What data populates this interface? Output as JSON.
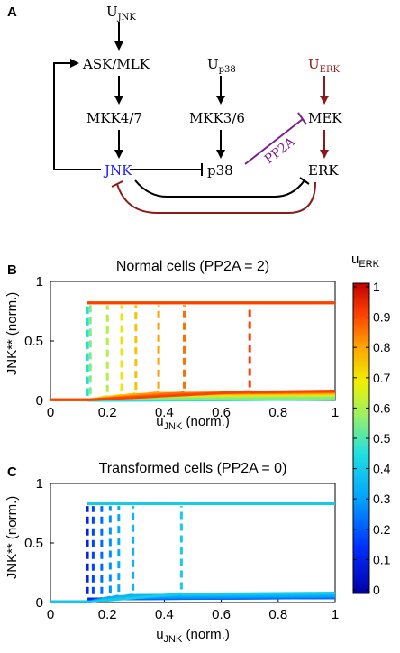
{
  "panel_a": {
    "label": "A",
    "nodes": {
      "u_jnk": {
        "main": "U",
        "sub": "JNK"
      },
      "ask_mlk": "ASK/MLK",
      "mkk47": "MKK4/7",
      "jnk": "JNK",
      "u_p38": {
        "main": "U",
        "sub": "p38"
      },
      "mkk36": "MKK3/6",
      "p38": "p38",
      "u_erk": {
        "main": "U",
        "sub": "ERK"
      },
      "mek": "MEK",
      "erk": "ERK",
      "pp2a": "PP2A"
    },
    "colors": {
      "jnk": "#1a1aff",
      "erk_path": "#8b1a1a",
      "pp2a": "#7a1f8a",
      "default": "#000000"
    }
  },
  "panel_b": {
    "label": "B",
    "title": "Normal cells (PP2A = 2)",
    "ylabel": "JNK** (norm.)",
    "xlabel": {
      "main": "u",
      "sub": "JNK",
      "rest": " (norm.)"
    },
    "xticks": [
      "0",
      "0.2",
      "0.4",
      "0.6",
      "0.8",
      "1"
    ],
    "yticks": [
      "0",
      "0.5",
      "1"
    ]
  },
  "panel_c": {
    "label": "C",
    "title": "Transformed cells (PP2A = 0)",
    "ylabel": "JNK** (norm.)",
    "xlabel": {
      "main": "u",
      "sub": "JNK",
      "rest": " (norm.)"
    },
    "xticks": [
      "0",
      "0.2",
      "0.4",
      "0.6",
      "0.8",
      "1"
    ],
    "yticks": [
      "0",
      "0.5",
      "1"
    ]
  },
  "colorbar": {
    "label": {
      "main": "u",
      "sub": "ERK"
    },
    "ticks": [
      "1",
      "0.9",
      "0.8",
      "0.7",
      "0.6",
      "0.5",
      "0.4",
      "0.3",
      "0.2",
      "0.1",
      "0"
    ]
  },
  "chart_data": [
    {
      "type": "line",
      "title": "Normal cells (PP2A = 2)",
      "xlabel": "uJNK (norm.)",
      "ylabel": "JNK** (norm.)",
      "xlim": [
        0,
        1
      ],
      "ylim": [
        0,
        1
      ],
      "color_scale": "uERK",
      "series": [
        {
          "u_erk": 0.35,
          "switch_x": 0.13,
          "upper": 0.82,
          "lower": 0.0
        },
        {
          "u_erk": 0.45,
          "switch_x": 0.13,
          "upper": 0.82,
          "lower": 0.0
        },
        {
          "u_erk": 0.55,
          "switch_x": 0.14,
          "upper": 0.82,
          "lower": 0.01
        },
        {
          "u_erk": 0.6,
          "switch_x": 0.2,
          "upper": 0.82,
          "lower": 0.03
        },
        {
          "u_erk": 0.7,
          "switch_x": 0.25,
          "upper": 0.82,
          "lower": 0.04
        },
        {
          "u_erk": 0.75,
          "switch_x": 0.3,
          "upper": 0.82,
          "lower": 0.05
        },
        {
          "u_erk": 0.8,
          "switch_x": 0.38,
          "upper": 0.82,
          "lower": 0.06
        },
        {
          "u_erk": 0.85,
          "switch_x": 0.47,
          "upper": 0.82,
          "lower": 0.06
        },
        {
          "u_erk": 0.9,
          "switch_x": 0.7,
          "upper": 0.82,
          "lower": 0.07
        }
      ]
    },
    {
      "type": "line",
      "title": "Transformed cells (PP2A = 0)",
      "xlabel": "uJNK (norm.)",
      "ylabel": "JNK** (norm.)",
      "xlim": [
        0,
        1
      ],
      "ylim": [
        0,
        1
      ],
      "color_scale": "uERK",
      "series": [
        {
          "u_erk": 0.12,
          "switch_x": 0.13,
          "upper": 0.83,
          "lower": 0.03
        },
        {
          "u_erk": 0.18,
          "switch_x": 0.15,
          "upper": 0.83,
          "lower": 0.03
        },
        {
          "u_erk": 0.23,
          "switch_x": 0.18,
          "upper": 0.83,
          "lower": 0.03
        },
        {
          "u_erk": 0.28,
          "switch_x": 0.21,
          "upper": 0.83,
          "lower": 0.04
        },
        {
          "u_erk": 0.32,
          "switch_x": 0.24,
          "upper": 0.83,
          "lower": 0.05
        },
        {
          "u_erk": 0.35,
          "switch_x": 0.29,
          "upper": 0.83,
          "lower": 0.06
        },
        {
          "u_erk": 0.4,
          "switch_x": 0.46,
          "upper": 0.83,
          "lower": 0.07
        }
      ]
    }
  ]
}
